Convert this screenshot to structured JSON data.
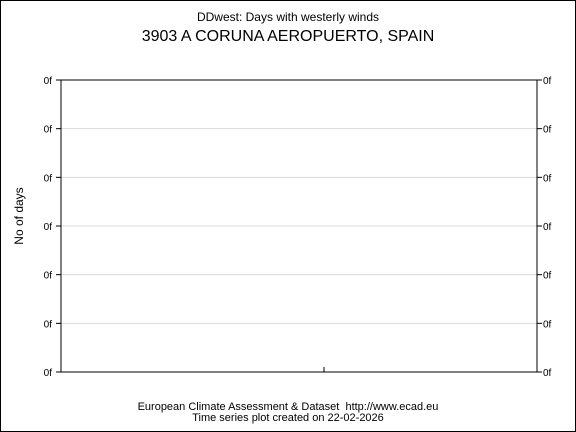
{
  "header": {
    "title": "DDwest: Days with westerly winds",
    "subtitle": "3903 A CORUNA AEROPUERTO, SPAIN"
  },
  "footer": {
    "line1": "European Climate Assessment & Dataset  http://www.ecad.eu",
    "line2": "Time series plot created on 22-02-2026"
  },
  "chart_data": {
    "type": "line",
    "title": "DDwest: Days with westerly winds",
    "subtitle": "3903 A CORUNA AEROPUERTO, SPAIN",
    "xlabel": "",
    "ylabel": "No of days",
    "y_tick_labels": [
      "0f",
      "0f",
      "0f",
      "0f",
      "0f",
      "0f",
      "0f"
    ],
    "x": [],
    "series": [],
    "grid": true,
    "legend": "none"
  },
  "colors": {
    "axis": "#000000",
    "grid": "#d9d9d9",
    "background": "#ffffff"
  }
}
